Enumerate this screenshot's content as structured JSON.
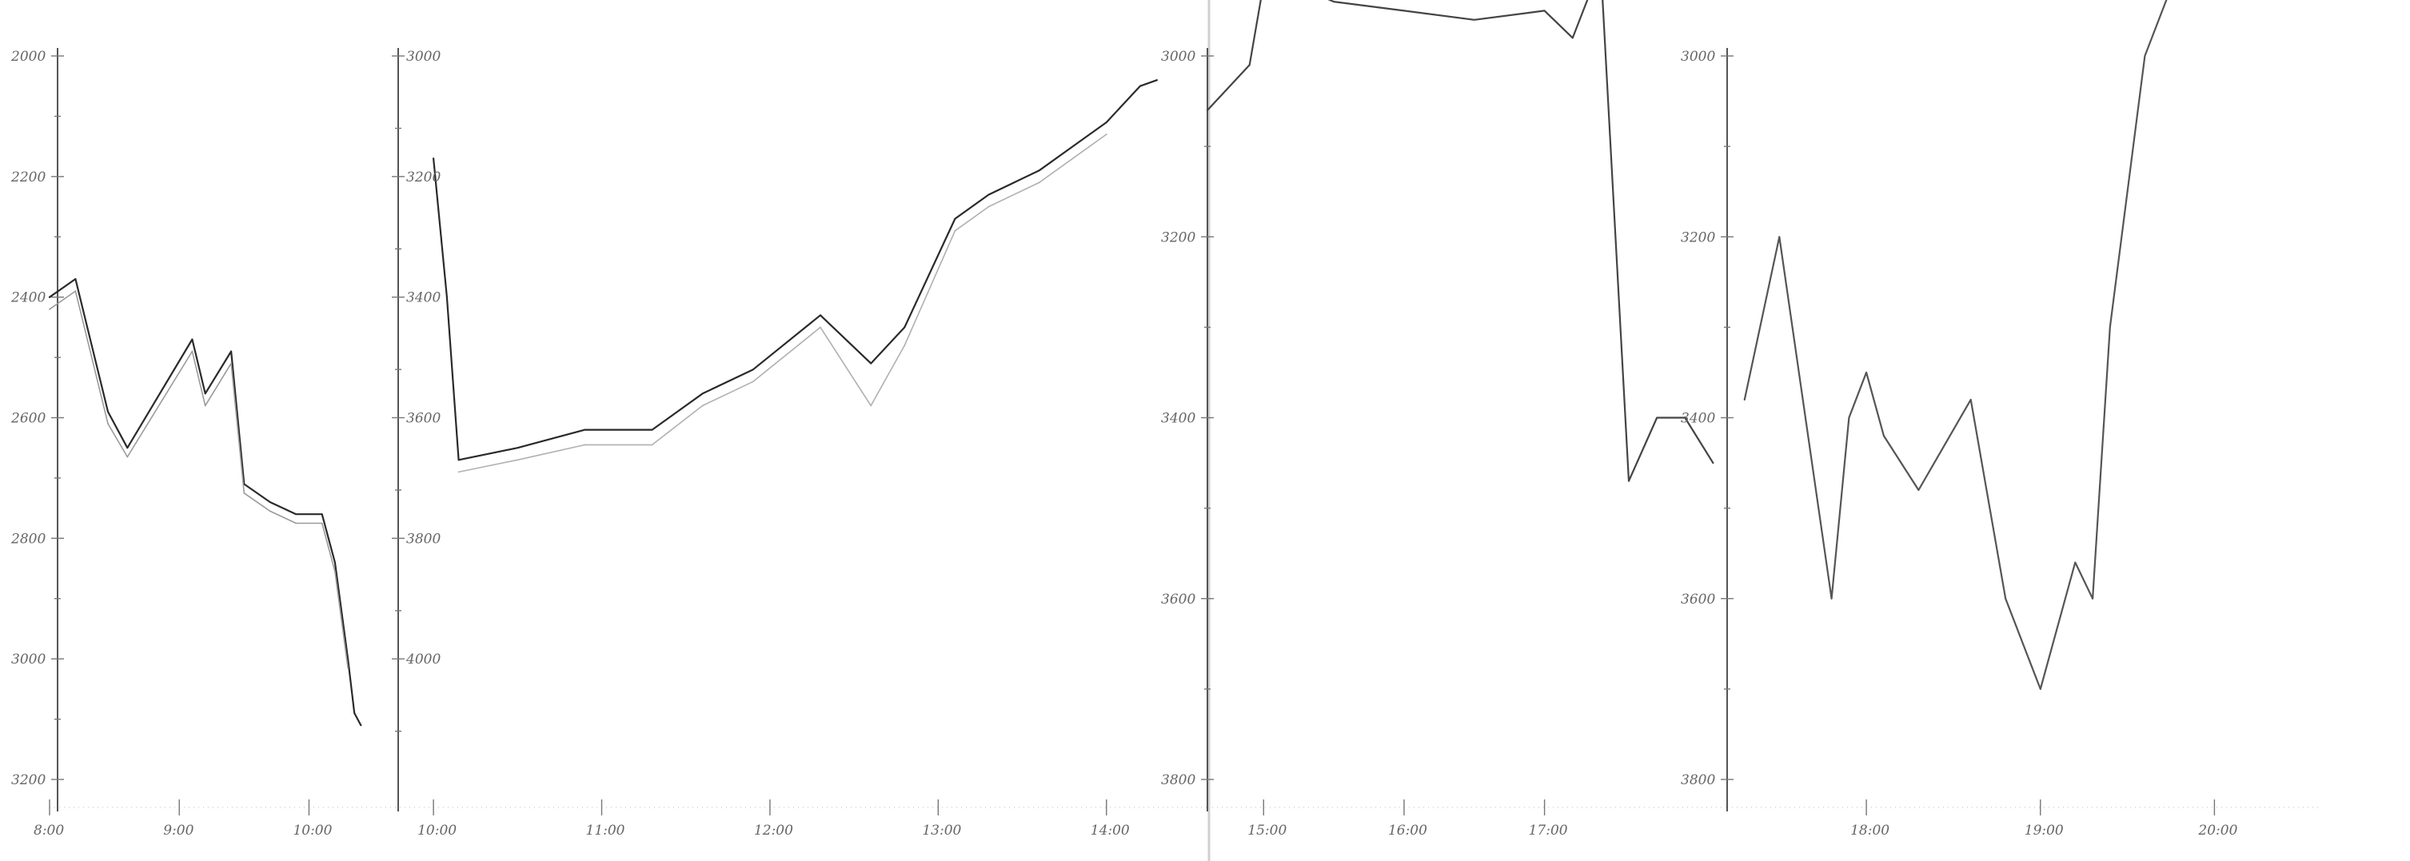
{
  "chart_data": [
    {
      "type": "line",
      "y_ticks": [
        "2000",
        "2200",
        "2400",
        "2600",
        "2800",
        "3000",
        "3200"
      ],
      "x_ticks": [
        "8:00",
        "9:00",
        "10:00"
      ],
      "ylim": [
        3200,
        2000
      ],
      "series": [
        {
          "x": [
            8.0,
            8.2,
            8.45,
            8.6,
            9.1,
            9.2,
            9.4,
            9.5,
            9.7,
            9.9,
            10.1,
            10.2,
            10.3,
            10.35,
            10.4
          ],
          "y": [
            2400,
            2370,
            2590,
            2650,
            2470,
            2560,
            2490,
            2710,
            2740,
            2760,
            2760,
            2840,
            3000,
            3090,
            3110
          ],
          "color": "#2a2a2a"
        },
        {
          "x": [
            8.0,
            8.2,
            8.45,
            8.6,
            9.1,
            9.2,
            9.4,
            9.5,
            9.7,
            9.9,
            10.1,
            10.2,
            10.3
          ],
          "y": [
            2420,
            2390,
            2610,
            2665,
            2490,
            2580,
            2510,
            2725,
            2755,
            2775,
            2775,
            2855,
            3015
          ],
          "color": "#9a9a9a"
        }
      ]
    },
    {
      "type": "line",
      "y_ticks": [
        "3000",
        "3200",
        "3400",
        "3600",
        "3800",
        "4000"
      ],
      "x_ticks": [
        "10:00",
        "11:00",
        "12:00",
        "13:00",
        "14:00"
      ],
      "ylim": [
        4200,
        3000
      ],
      "series": [
        {
          "x": [
            10.0,
            10.08,
            10.15,
            10.5,
            10.9,
            11.3,
            11.6,
            11.9,
            12.3,
            12.6,
            12.8,
            13.1,
            13.3,
            13.6,
            13.8,
            14.0,
            14.2,
            14.3
          ],
          "y": [
            3170,
            3400,
            3670,
            3650,
            3620,
            3620,
            3560,
            3520,
            3430,
            3510,
            3450,
            3270,
            3230,
            3190,
            3150,
            3110,
            3050,
            3040
          ],
          "color": "#2a2a2a"
        },
        {
          "x": [
            10.15,
            10.5,
            10.9,
            11.3,
            11.6,
            11.9,
            12.3,
            12.6,
            12.8,
            13.1,
            13.3,
            13.6,
            13.8,
            14.0
          ],
          "y": [
            3690,
            3670,
            3645,
            3645,
            3580,
            3540,
            3450,
            3580,
            3480,
            3290,
            3250,
            3210,
            3170,
            3130
          ],
          "color": "#b0b0b0"
        }
      ]
    },
    {
      "type": "line",
      "y_ticks": [
        "3000",
        "3200",
        "3400",
        "3600",
        "3800"
      ],
      "x_ticks": [
        "15:00",
        "16:00",
        "17:00"
      ],
      "ylim": [
        3800,
        3000
      ],
      "series": [
        {
          "x": [
            14.6,
            14.9,
            15.0,
            15.2,
            15.5,
            16.0,
            16.5,
            17.0,
            17.2,
            17.4,
            17.6,
            17.8,
            18.0,
            18.2
          ],
          "y": [
            3060,
            3010,
            2920,
            2920,
            2940,
            2950,
            2960,
            2950,
            2980,
            2900,
            3470,
            3400,
            3400,
            3450
          ],
          "color": "#444444"
        }
      ]
    },
    {
      "type": "line",
      "y_ticks": [
        "3000",
        "3200",
        "3400",
        "3600",
        "3800"
      ],
      "x_ticks": [
        "18:00",
        "19:00",
        "20:00"
      ],
      "ylim": [
        3800,
        3000
      ],
      "series": [
        {
          "x": [
            17.3,
            17.5,
            17.8,
            17.9,
            18.0,
            18.1,
            18.3,
            18.6,
            18.8,
            19.0,
            19.2,
            19.3,
            19.4,
            19.6,
            19.8
          ],
          "y": [
            3380,
            3200,
            3600,
            3400,
            3350,
            3420,
            3480,
            3380,
            3600,
            3700,
            3560,
            3600,
            3300,
            3000,
            2900
          ],
          "color": "#555555"
        }
      ]
    }
  ]
}
